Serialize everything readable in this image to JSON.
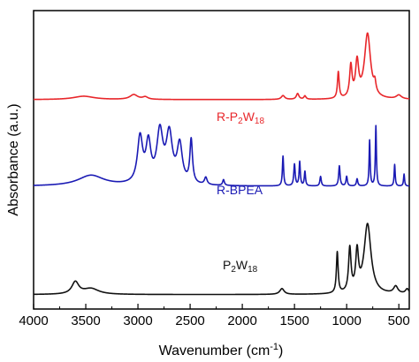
{
  "chart_data": {
    "type": "line",
    "xlabel": "Wavenumber (cm",
    "xlabel_sup": "-1",
    "xlabel_suffix": ")",
    "ylabel": "Absorbance (a.u.)",
    "xlim": [
      4000,
      400
    ],
    "x_ticks": [
      "4000",
      "3500",
      "3000",
      "2500",
      "2000",
      "1500",
      "1000",
      "500"
    ],
    "x_tick_values": [
      4000,
      3500,
      3000,
      2500,
      2000,
      1500,
      1000,
      500
    ],
    "y_ticks_shown": false,
    "grid": false,
    "series": [
      {
        "name_parts": [
          "R-P",
          "2",
          "W",
          "18"
        ],
        "color": "#e8262a",
        "baseline": 4.35,
        "peaks": [
          {
            "x": 3520,
            "h": 0.07,
            "w": 120
          },
          {
            "x": 3040,
            "h": 0.1,
            "w": 45
          },
          {
            "x": 2930,
            "h": 0.05,
            "w": 30
          },
          {
            "x": 1610,
            "h": 0.08,
            "w": 20
          },
          {
            "x": 1470,
            "h": 0.12,
            "w": 15
          },
          {
            "x": 1400,
            "h": 0.07,
            "w": 12
          },
          {
            "x": 1080,
            "h": 0.55,
            "w": 10
          },
          {
            "x": 960,
            "h": 0.65,
            "w": 14
          },
          {
            "x": 900,
            "h": 0.72,
            "w": 18
          },
          {
            "x": 800,
            "h": 1.35,
            "w": 35
          },
          {
            "x": 730,
            "h": 0.2,
            "w": 12
          },
          {
            "x": 500,
            "h": 0.08,
            "w": 30
          }
        ]
      },
      {
        "name_parts": [
          "R-BPEA"
        ],
        "color": "#1a1ab4",
        "baseline": 2.55,
        "peaks": [
          {
            "x": 3450,
            "h": 0.22,
            "w": 150
          },
          {
            "x": 2980,
            "h": 0.95,
            "w": 30
          },
          {
            "x": 2900,
            "h": 0.8,
            "w": 28
          },
          {
            "x": 2790,
            "h": 1.05,
            "w": 35
          },
          {
            "x": 2700,
            "h": 1.0,
            "w": 35
          },
          {
            "x": 2600,
            "h": 0.8,
            "w": 30
          },
          {
            "x": 2490,
            "h": 0.9,
            "w": 15
          },
          {
            "x": 2350,
            "h": 0.15,
            "w": 15
          },
          {
            "x": 2180,
            "h": 0.12,
            "w": 10
          },
          {
            "x": 1610,
            "h": 0.62,
            "w": 7
          },
          {
            "x": 1500,
            "h": 0.45,
            "w": 8
          },
          {
            "x": 1450,
            "h": 0.5,
            "w": 7
          },
          {
            "x": 1400,
            "h": 0.3,
            "w": 7
          },
          {
            "x": 1250,
            "h": 0.2,
            "w": 8
          },
          {
            "x": 1070,
            "h": 0.42,
            "w": 8
          },
          {
            "x": 1000,
            "h": 0.2,
            "w": 8
          },
          {
            "x": 900,
            "h": 0.15,
            "w": 8
          },
          {
            "x": 780,
            "h": 0.95,
            "w": 6
          },
          {
            "x": 720,
            "h": 1.25,
            "w": 6
          },
          {
            "x": 540,
            "h": 0.45,
            "w": 6
          },
          {
            "x": 450,
            "h": 0.25,
            "w": 6
          }
        ]
      },
      {
        "name_parts": [
          "P",
          "2",
          "W",
          "18"
        ],
        "color": "#111111",
        "baseline": 0.3,
        "peaks": [
          {
            "x": 3600,
            "h": 0.25,
            "w": 40
          },
          {
            "x": 3450,
            "h": 0.12,
            "w": 90
          },
          {
            "x": 1620,
            "h": 0.12,
            "w": 25
          },
          {
            "x": 1090,
            "h": 0.85,
            "w": 10
          },
          {
            "x": 970,
            "h": 0.9,
            "w": 14
          },
          {
            "x": 900,
            "h": 0.8,
            "w": 16
          },
          {
            "x": 800,
            "h": 1.45,
            "w": 40
          },
          {
            "x": 530,
            "h": 0.15,
            "w": 25
          },
          {
            "x": 420,
            "h": 0.1,
            "w": 20
          }
        ]
      }
    ]
  }
}
